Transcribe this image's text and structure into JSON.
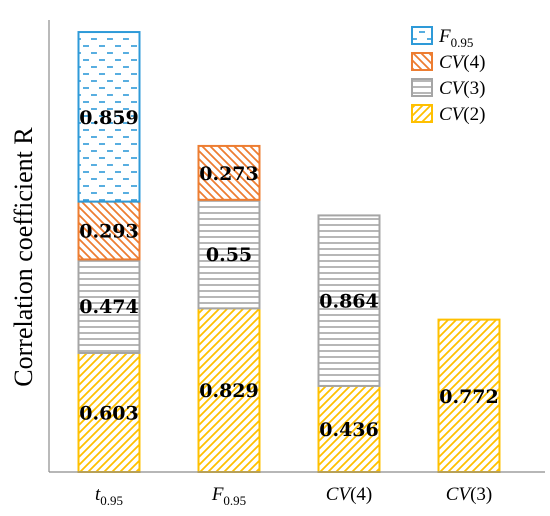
{
  "chart_data": {
    "type": "bar",
    "stacked": true,
    "ylabel": "Correlation coefficient R",
    "ylim": [
      0,
      2.29
    ],
    "grid": false,
    "legend_position": "top-right",
    "categories": [
      {
        "main": "t",
        "sub": "0.95",
        "italic": true
      },
      {
        "main": "F",
        "sub": "0.95",
        "italic": true
      },
      {
        "main": "CV",
        "tail": "(4)",
        "italic": true
      },
      {
        "main": "CV",
        "tail": "(3)",
        "italic": true
      }
    ],
    "series": [
      {
        "key": "cv2",
        "name": {
          "main": "CV",
          "tail": "(2)"
        },
        "color": "#FFC000",
        "pattern": "diagonal",
        "values": [
          0.603,
          0.829,
          0.436,
          0.772
        ],
        "labels": [
          "0.603",
          "0.829",
          "0.436",
          "0.772"
        ]
      },
      {
        "key": "cv3",
        "name": {
          "main": "CV",
          "tail": "(3)"
        },
        "color": "#A5A5A5",
        "pattern": "horizontal",
        "values": [
          0.474,
          0.55,
          0.864,
          null
        ],
        "labels": [
          "0.474",
          "0.55",
          "0.864",
          null
        ]
      },
      {
        "key": "cv4",
        "name": {
          "main": "CV",
          "tail": "(4)"
        },
        "color": "#ED7D31",
        "pattern": "backslash",
        "values": [
          0.293,
          0.273,
          null,
          null
        ],
        "labels": [
          "0.293",
          "0.273",
          null,
          null
        ]
      },
      {
        "key": "f95",
        "name": {
          "main": "F",
          "sub": "0.95"
        },
        "color": "#2E9AD8",
        "pattern": "dashes",
        "values": [
          0.859,
          null,
          null,
          null
        ],
        "labels": [
          "0.859",
          null,
          null,
          null
        ]
      }
    ],
    "legend_order": [
      "f95",
      "cv4",
      "cv3",
      "cv2"
    ]
  }
}
